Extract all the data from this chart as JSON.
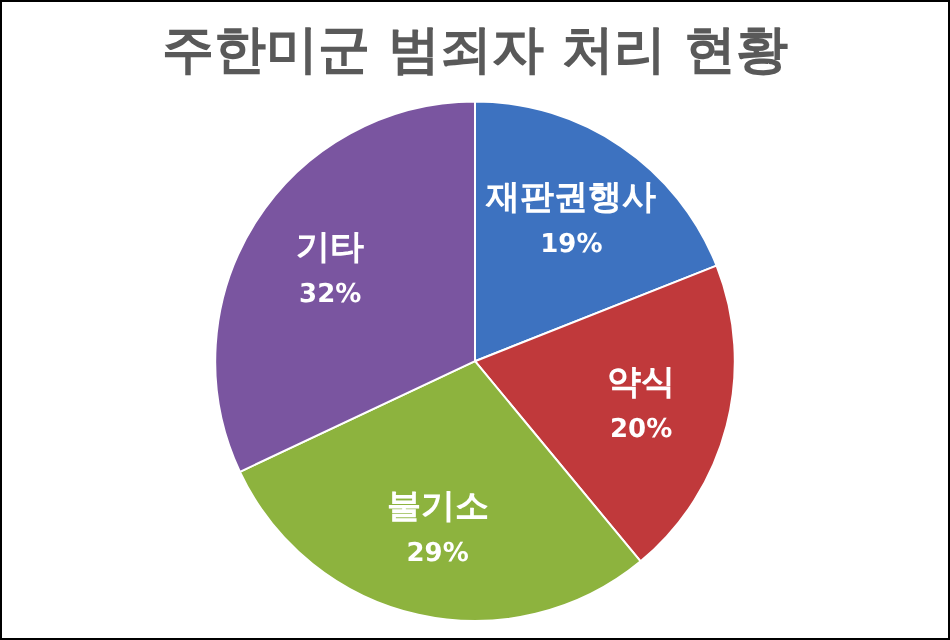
{
  "chart_data": {
    "type": "pie",
    "title": "주한미군 범죄자 처리 현황",
    "categories": [
      "재판권행사",
      "약식",
      "불기소",
      "기타"
    ],
    "values": [
      19,
      20,
      29,
      32
    ],
    "value_labels": [
      "19%",
      "20%",
      "29%",
      "32%"
    ],
    "colors": [
      "#3d72c0",
      "#c0393b",
      "#8db33e",
      "#7a55a0"
    ],
    "legend": false
  }
}
